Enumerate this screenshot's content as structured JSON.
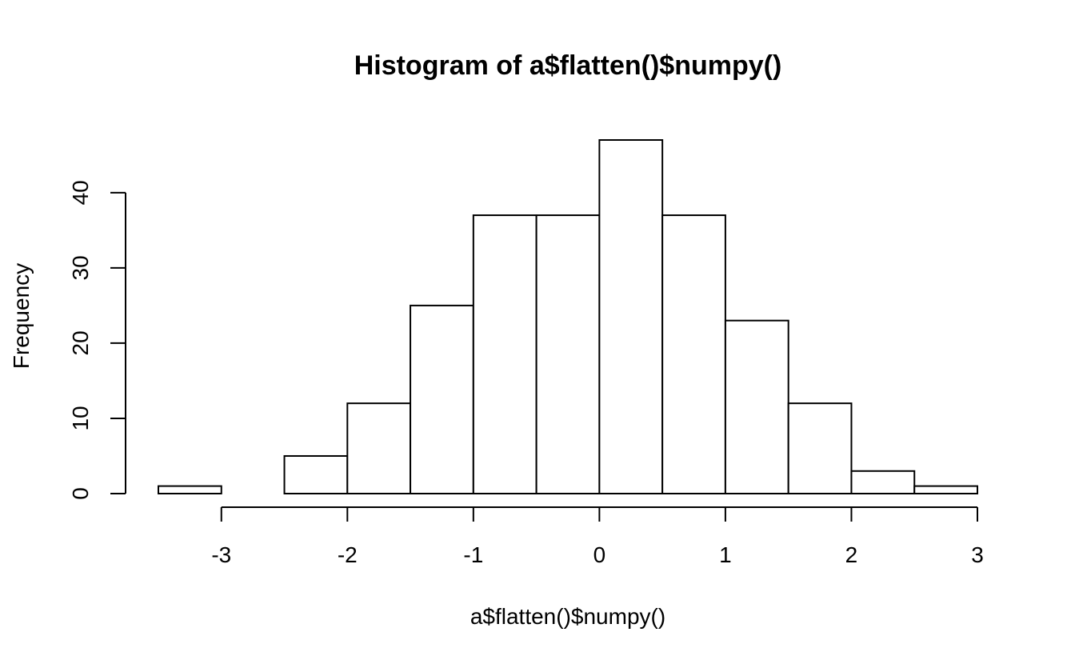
{
  "chart_data": {
    "type": "bar",
    "title": "Histogram of a$flatten()$numpy()",
    "xlabel": "a$flatten()$numpy()",
    "ylabel": "Frequency",
    "bins": [
      {
        "start": -3.5,
        "end": -3.0,
        "count": 1
      },
      {
        "start": -3.0,
        "end": -2.5,
        "count": 0
      },
      {
        "start": -2.5,
        "end": -2.0,
        "count": 5
      },
      {
        "start": -2.0,
        "end": -1.5,
        "count": 12
      },
      {
        "start": -1.5,
        "end": -1.0,
        "count": 25
      },
      {
        "start": -1.0,
        "end": -0.5,
        "count": 37
      },
      {
        "start": -0.5,
        "end": 0.0,
        "count": 37
      },
      {
        "start": 0.0,
        "end": 0.5,
        "count": 47
      },
      {
        "start": 0.5,
        "end": 1.0,
        "count": 37
      },
      {
        "start": 1.0,
        "end": 1.5,
        "count": 23
      },
      {
        "start": 1.5,
        "end": 2.0,
        "count": 12
      },
      {
        "start": 2.0,
        "end": 2.5,
        "count": 3
      },
      {
        "start": 2.5,
        "end": 3.0,
        "count": 1
      }
    ],
    "xlim": [
      -3.5,
      3.0
    ],
    "ylim": [
      0,
      47
    ],
    "x_ticks": [
      -3,
      -2,
      -1,
      0,
      1,
      2,
      3
    ],
    "x_tick_labels": [
      "-3",
      "-2",
      "-1",
      "0",
      "1",
      "2",
      "3"
    ],
    "y_ticks": [
      0,
      10,
      20,
      30,
      40
    ],
    "y_tick_labels": [
      "0",
      "10",
      "20",
      "30",
      "40"
    ],
    "grid": false,
    "legend": "none",
    "colors": {
      "bar_fill": "#ffffff",
      "bar_stroke": "#000000",
      "axis": "#000000",
      "background": "#ffffff"
    }
  }
}
